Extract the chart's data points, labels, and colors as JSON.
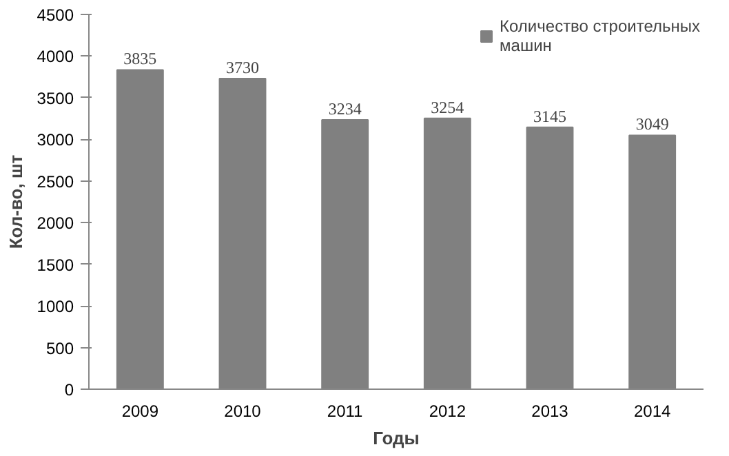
{
  "chart_data": {
    "type": "bar",
    "xlabel": "Годы",
    "ylabel": "Кол-во, шт",
    "categories": [
      "2009",
      "2010",
      "2011",
      "2012",
      "2013",
      "2014"
    ],
    "series": [
      {
        "name": "Количество строительных машин",
        "color": "#808080",
        "values": [
          3835,
          3730,
          3234,
          3254,
          3145,
          3049
        ]
      }
    ],
    "ylim": [
      0,
      4500
    ],
    "yticks": [
      0,
      500,
      1000,
      1500,
      2000,
      2500,
      3000,
      3500,
      4000,
      4500
    ],
    "data_labels": true,
    "grid": false,
    "legend": "top right"
  }
}
